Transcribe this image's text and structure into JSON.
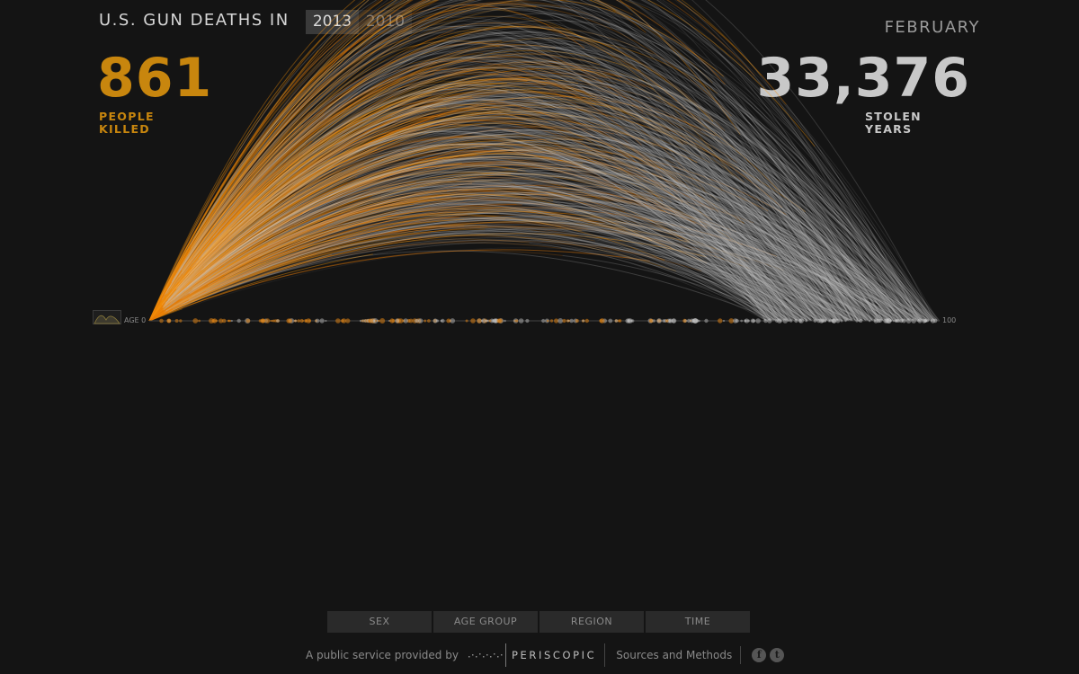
{
  "header": {
    "title": "U.S. GUN DEATHS IN",
    "years": [
      "2013",
      "2010"
    ],
    "active_year": "2013",
    "month": "FEBRUARY"
  },
  "stats": {
    "people_killed": "861",
    "people_killed_label": "PEOPLE KILLED",
    "stolen_years": "33,376",
    "stolen_years_label": "STOLEN YEARS"
  },
  "axis": {
    "start_label": "AGE 0",
    "end_label": "100"
  },
  "filters": [
    "SEX",
    "AGE GROUP",
    "REGION",
    "TIME"
  ],
  "footer": {
    "credit": "A public service provided by",
    "logo_text": "PERISCOPIC",
    "sources": "Sources and Methods",
    "social": [
      "f",
      "t"
    ]
  },
  "colors": {
    "background": "#141414",
    "killed": "#c8860e",
    "arc_lived": "#ff8c14",
    "arc_stolen": "#cfcfcf"
  },
  "icons": {
    "histogram": "histogram-icon",
    "facebook": "facebook-icon",
    "twitter": "twitter-icon"
  }
}
